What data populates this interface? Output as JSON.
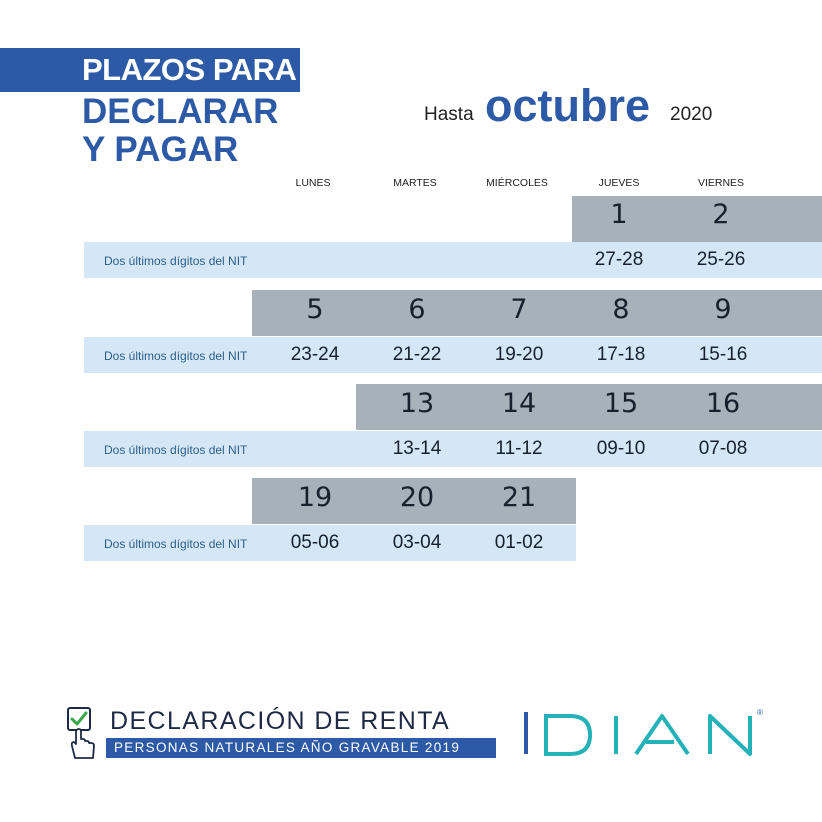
{
  "header": {
    "title_line1": "PLAZOS PARA",
    "title_line2": "DECLARAR",
    "title_line3": "Y PAGAR",
    "hasta": "Hasta",
    "month": "octubre",
    "year": "2020"
  },
  "weekdays": [
    "LUNES",
    "MARTES",
    "MIÉRCOLES",
    "JUEVES",
    "VIERNES"
  ],
  "nit_label": "Dos últimos dígitos del NIT",
  "weeks": [
    {
      "days": [
        {
          "day": "1",
          "nit": "27-28"
        },
        {
          "day": "2",
          "nit": "25-26"
        }
      ]
    },
    {
      "days": [
        {
          "day": "5",
          "nit": "23-24"
        },
        {
          "day": "6",
          "nit": "21-22"
        },
        {
          "day": "7",
          "nit": "19-20"
        },
        {
          "day": "8",
          "nit": "17-18"
        },
        {
          "day": "9",
          "nit": "15-16"
        }
      ]
    },
    {
      "days": [
        {
          "day": "13",
          "nit": "13-14"
        },
        {
          "day": "14",
          "nit": "11-12"
        },
        {
          "day": "15",
          "nit": "09-10"
        },
        {
          "day": "16",
          "nit": "07-08"
        }
      ]
    },
    {
      "days": [
        {
          "day": "19",
          "nit": "05-06"
        },
        {
          "day": "20",
          "nit": "03-04"
        },
        {
          "day": "21",
          "nit": "01-02"
        }
      ]
    }
  ],
  "footer": {
    "title": "DECLARACIÓN DE RENTA",
    "subtitle": "PERSONAS NATURALES AÑO GRAVABLE 2019",
    "icon": "checkbox-hand-icon",
    "logo": "DIAN",
    "registered": "®"
  },
  "colors": {
    "brand_blue": "#2d5aa6",
    "day_band": "#a7b1ba",
    "nit_band": "#d5e7f7",
    "logo_teal": "#24b2b8"
  }
}
